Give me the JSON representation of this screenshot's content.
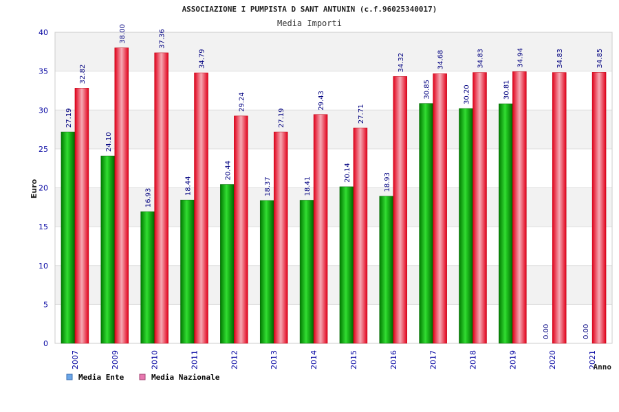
{
  "chart_data": {
    "type": "bar",
    "title": "ASSOCIAZIONE I PUMPISTA D SANT ANTUNIN (c.f.96025340017)",
    "subtitle": "Media Importi",
    "xlabel": "Anno",
    "ylabel": "Euro",
    "ylim": [
      0,
      40
    ],
    "yticks": [
      "0",
      "5",
      "10",
      "15",
      "20",
      "25",
      "30",
      "35",
      "40"
    ],
    "grid": true,
    "legend_position": "bottom-left",
    "categories": [
      "2007",
      "2009",
      "2010",
      "2011",
      "2012",
      "2013",
      "2014",
      "2015",
      "2016",
      "2017",
      "2018",
      "2019",
      "2020",
      "2021"
    ],
    "series": [
      {
        "name": "Media Ente",
        "color": "#00b400",
        "legend_color": "#6aa6e8",
        "values": [
          27.19,
          24.1,
          16.93,
          18.44,
          20.44,
          18.37,
          18.41,
          20.14,
          18.93,
          30.85,
          30.2,
          30.81,
          0.0,
          0.0
        ],
        "labels": [
          "27.19",
          "24.10",
          "16.93",
          "18.44",
          "20.44",
          "18.37",
          "18.41",
          "20.14",
          "18.93",
          "30.85",
          "30.20",
          "30.81",
          "0.00",
          "0.00"
        ]
      },
      {
        "name": "Media Nazionale",
        "color": "#f01020",
        "legend_color": "#e878b0",
        "values": [
          32.82,
          38.0,
          37.36,
          34.79,
          29.24,
          27.19,
          29.43,
          27.71,
          34.32,
          34.68,
          34.83,
          34.94,
          34.83,
          34.85
        ],
        "labels": [
          "32.82",
          "38.00",
          "37.36",
          "34.79",
          "29.24",
          "27.19",
          "29.43",
          "27.71",
          "34.32",
          "34.68",
          "34.83",
          "34.94",
          "34.83",
          "34.85"
        ]
      }
    ]
  }
}
